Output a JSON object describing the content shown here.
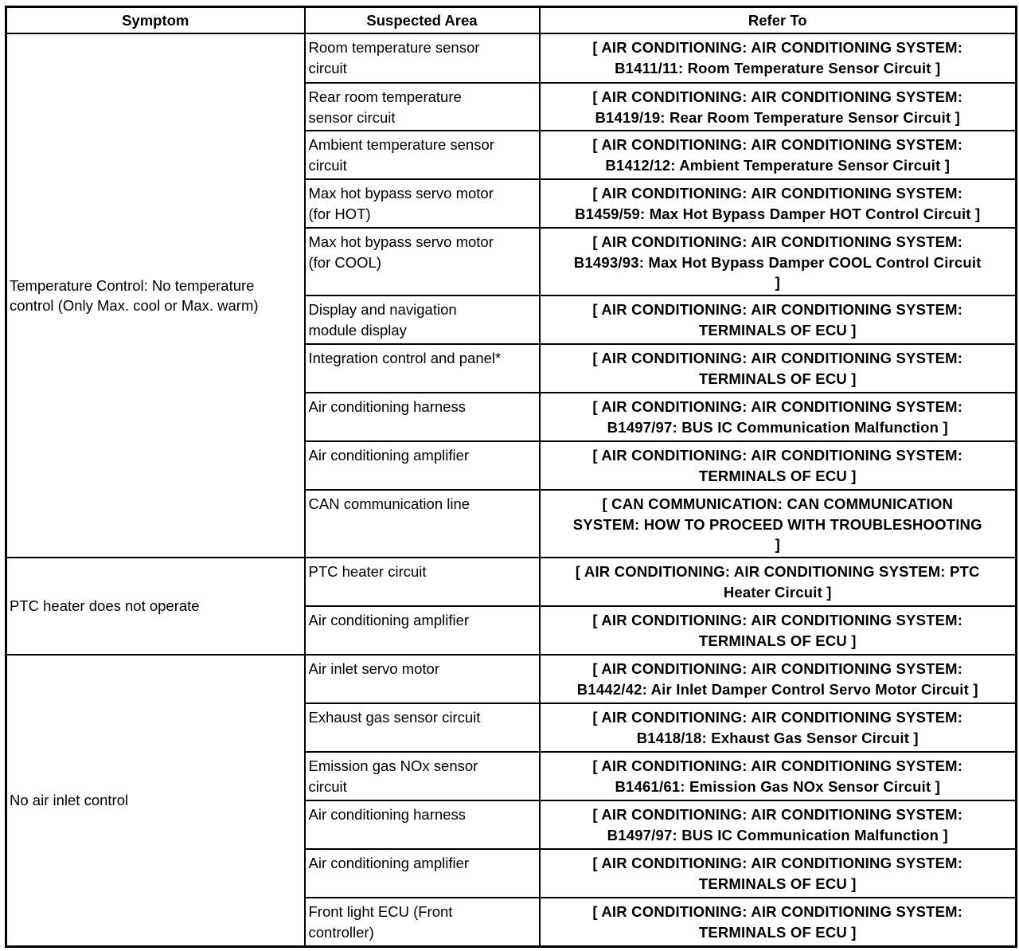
{
  "headers": {
    "symptom": "Symptom",
    "area": "Suspected Area",
    "refer": "Refer To"
  },
  "groups": [
    {
      "symptom": "Temperature Control: No temperature\ncontrol (Only Max. cool or Max. warm)",
      "rows": [
        {
          "area": "Room temperature sensor\ncircuit",
          "refer": "[ AIR CONDITIONING: AIR CONDITIONING SYSTEM:\nB1411/11: Room Temperature Sensor Circuit ]"
        },
        {
          "area": "Rear room temperature\nsensor circuit",
          "refer": "[ AIR CONDITIONING: AIR CONDITIONING SYSTEM:\nB1419/19: Rear Room Temperature Sensor Circuit ]"
        },
        {
          "area": "Ambient temperature sensor\ncircuit",
          "refer": "[ AIR CONDITIONING: AIR CONDITIONING SYSTEM:\nB1412/12: Ambient Temperature Sensor Circuit ]"
        },
        {
          "area": "Max hot bypass servo motor\n(for HOT)",
          "refer": "[ AIR CONDITIONING: AIR CONDITIONING SYSTEM:\nB1459/59: Max Hot Bypass Damper HOT Control Circuit ]"
        },
        {
          "area": "Max hot bypass servo motor\n(for COOL)",
          "refer": "[ AIR CONDITIONING: AIR CONDITIONING SYSTEM:\nB1493/93: Max Hot Bypass Damper COOL Control Circuit\n]"
        },
        {
          "area": "Display and navigation\nmodule display",
          "refer": "[ AIR CONDITIONING: AIR CONDITIONING SYSTEM:\nTERMINALS OF ECU ]"
        },
        {
          "area": "Integration control and panel*",
          "refer": "[ AIR CONDITIONING: AIR CONDITIONING SYSTEM:\nTERMINALS OF ECU ]"
        },
        {
          "area": "Air conditioning harness",
          "refer": "[ AIR CONDITIONING: AIR CONDITIONING SYSTEM:\nB1497/97: BUS IC Communication Malfunction ]"
        },
        {
          "area": "Air conditioning amplifier",
          "refer": "[ AIR CONDITIONING: AIR CONDITIONING SYSTEM:\nTERMINALS OF ECU ]"
        },
        {
          "area": "CAN communication line",
          "refer": "[ CAN COMMUNICATION: CAN COMMUNICATION\nSYSTEM: HOW TO PROCEED WITH TROUBLESHOOTING\n]"
        }
      ]
    },
    {
      "symptom": "PTC heater does not operate",
      "rows": [
        {
          "area": "PTC heater circuit",
          "refer": "[ AIR CONDITIONING: AIR CONDITIONING SYSTEM: PTC\nHeater Circuit ]"
        },
        {
          "area": "Air conditioning amplifier",
          "refer": "[ AIR CONDITIONING: AIR CONDITIONING SYSTEM:\nTERMINALS OF ECU ]"
        }
      ]
    },
    {
      "symptom": "No air inlet control",
      "rows": [
        {
          "area": "Air inlet servo motor",
          "refer": "[ AIR CONDITIONING: AIR CONDITIONING SYSTEM:\nB1442/42: Air Inlet Damper Control Servo Motor Circuit ]"
        },
        {
          "area": "Exhaust gas sensor circuit",
          "refer": "[ AIR CONDITIONING: AIR CONDITIONING SYSTEM:\nB1418/18: Exhaust Gas Sensor Circuit ]"
        },
        {
          "area": "Emission gas NOx sensor\ncircuit",
          "refer": "[ AIR CONDITIONING: AIR CONDITIONING SYSTEM:\nB1461/61: Emission Gas NOx Sensor Circuit ]"
        },
        {
          "area": "Air conditioning harness",
          "refer": "[ AIR CONDITIONING: AIR CONDITIONING SYSTEM:\nB1497/97: BUS IC Communication Malfunction ]"
        },
        {
          "area": "Air conditioning amplifier",
          "refer": "[ AIR CONDITIONING: AIR CONDITIONING SYSTEM:\nTERMINALS OF ECU ]"
        },
        {
          "area": "Front light ECU (Front\ncontroller)",
          "refer": "[ AIR CONDITIONING: AIR CONDITIONING SYSTEM:\nTERMINALS OF ECU ]"
        }
      ]
    }
  ]
}
